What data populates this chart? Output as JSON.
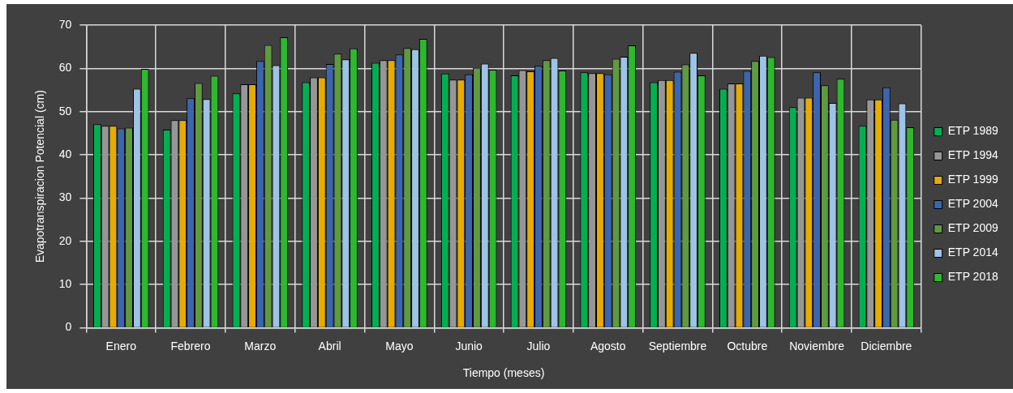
{
  "chart_data": {
    "type": "bar",
    "xlabel": "Tiempo (meses)",
    "ylabel": "Evapotranspiracion Potencial (cm)",
    "categories": [
      "Enero",
      "Febrero",
      "Marzo",
      "Abril",
      "Mayo",
      "Junio",
      "Julio",
      "Agosto",
      "Septiembre",
      "Octubre",
      "Noviembre",
      "Diciembre"
    ],
    "series": [
      {
        "name": "ETP 1989",
        "color": "#00b050",
        "values": [
          47.1,
          45.8,
          54.2,
          56.8,
          61.3,
          58.8,
          58.4,
          59.1,
          56.8,
          55.3,
          51.0,
          46.7
        ]
      },
      {
        "name": "ETP 1994",
        "color": "#969696",
        "values": [
          46.7,
          48.0,
          56.3,
          57.9,
          61.9,
          57.4,
          59.6,
          58.9,
          57.3,
          56.5,
          53.2,
          52.8
        ]
      },
      {
        "name": "ETP 1999",
        "color": "#e6ac00",
        "values": [
          46.7,
          48.0,
          56.3,
          57.9,
          61.9,
          57.4,
          59.3,
          58.9,
          57.3,
          56.5,
          53.2,
          52.8
        ]
      },
      {
        "name": "ETP 2004",
        "color": "#3a66b0",
        "values": [
          46.1,
          53.1,
          61.7,
          61.0,
          63.2,
          58.6,
          60.6,
          58.6,
          59.2,
          59.4,
          59.1,
          55.6
        ]
      },
      {
        "name": "ETP 2009",
        "color": "#5f9a3f",
        "values": [
          46.3,
          56.6,
          65.4,
          63.4,
          64.7,
          60.1,
          61.9,
          62.2,
          60.9,
          61.7,
          56.1,
          48.1
        ]
      },
      {
        "name": "ETP 2014",
        "color": "#9dc3e6",
        "values": [
          55.3,
          52.9,
          60.7,
          62.1,
          64.4,
          61.1,
          62.4,
          62.7,
          63.6,
          62.9,
          52.0,
          51.9
        ]
      },
      {
        "name": "ETP 2018",
        "color": "#2db82d",
        "values": [
          59.9,
          58.3,
          67.2,
          64.6,
          66.8,
          59.7,
          59.5,
          65.3,
          58.4,
          62.6,
          57.6,
          46.4
        ]
      }
    ],
    "ylim": [
      0,
      70
    ],
    "yticks": [
      0,
      10,
      20,
      30,
      40,
      50,
      60,
      70
    ],
    "grid": true,
    "legend": "right"
  }
}
